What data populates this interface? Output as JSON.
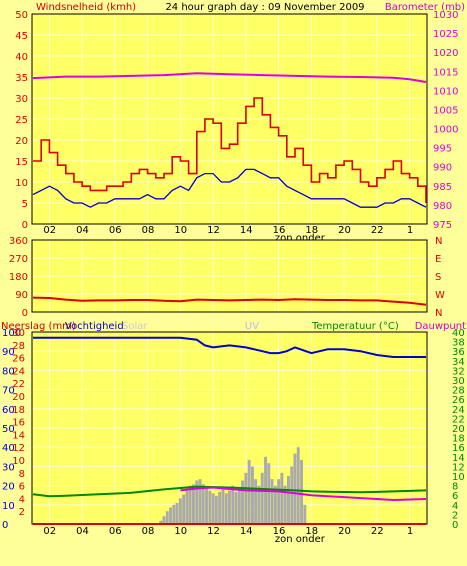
{
  "colors": {
    "background": "#ffff99",
    "plot_bg": "#ffff66",
    "grid": "#ffffcc",
    "frame": "#000000",
    "wind_gust": "#dd0000",
    "wind_avg": "#0000cc",
    "barometer": "#dd00dd",
    "direction": "#dd0000",
    "humidity": "#0000cc",
    "rain": "#dd0000",
    "solar": "#aaaaaa",
    "temperature": "#008800",
    "dewpoint": "#dd00dd",
    "uv": "#bbbbee"
  },
  "chart_data": [
    {
      "type": "line",
      "title": "24 hour graph day : 09 November 2009",
      "ylabel": "Windsnelheid (kmh)",
      "y2label": "Barometer (mb)",
      "x_ticks": [
        "02",
        "04",
        "06",
        "08",
        "10",
        "12",
        "14",
        "16",
        "18",
        "20",
        "22",
        "1"
      ],
      "x_note": "zon onder",
      "x_note_hour": 16.3,
      "ylim": [
        0,
        50
      ],
      "y_ticks": [
        0,
        5,
        10,
        15,
        20,
        25,
        30,
        35,
        40,
        45,
        50
      ],
      "y2lim": [
        975,
        1030
      ],
      "y2_ticks": [
        975,
        980,
        985,
        990,
        995,
        1000,
        1005,
        1010,
        1015,
        1020,
        1025,
        1030
      ],
      "series": [
        {
          "key": "gust",
          "axis": "left",
          "style": "step",
          "hours": [
            0,
            0.5,
            1,
            1.5,
            2,
            2.5,
            3,
            3.5,
            4,
            4.5,
            5,
            5.5,
            6,
            6.5,
            7,
            7.5,
            8,
            8.5,
            9,
            9.5,
            10,
            10.5,
            11,
            11.5,
            12,
            12.5,
            13,
            13.5,
            14,
            14.5,
            15,
            15.5,
            16,
            16.5,
            17,
            17.5,
            18,
            18.5,
            19,
            19.5,
            20,
            20.5,
            21,
            21.5,
            22,
            22.5,
            23,
            23.5,
            24
          ],
          "values": [
            15,
            20,
            17,
            14,
            12,
            10,
            9,
            8,
            8,
            9,
            9,
            10,
            12,
            13,
            12,
            11,
            12,
            16,
            15,
            12,
            22,
            25,
            24,
            18,
            19,
            24,
            28,
            30,
            26,
            23,
            21,
            16,
            18,
            14,
            10,
            12,
            11,
            14,
            15,
            13,
            10,
            9,
            11,
            13,
            15,
            12,
            11,
            9,
            5
          ]
        },
        {
          "key": "average",
          "axis": "left",
          "style": "line",
          "hours": [
            0,
            0.5,
            1,
            1.5,
            2,
            2.5,
            3,
            3.5,
            4,
            4.5,
            5,
            5.5,
            6,
            6.5,
            7,
            7.5,
            8,
            8.5,
            9,
            9.5,
            10,
            10.5,
            11,
            11.5,
            12,
            12.5,
            13,
            13.5,
            14,
            14.5,
            15,
            15.5,
            16,
            16.5,
            17,
            17.5,
            18,
            18.5,
            19,
            19.5,
            20,
            20.5,
            21,
            21.5,
            22,
            22.5,
            23,
            23.5,
            24
          ],
          "values": [
            7,
            8,
            9,
            8,
            6,
            5,
            5,
            4,
            5,
            5,
            6,
            6,
            6,
            6,
            7,
            6,
            6,
            8,
            9,
            8,
            11,
            12,
            12,
            10,
            10,
            11,
            13,
            13,
            12,
            11,
            11,
            9,
            8,
            7,
            6,
            6,
            6,
            6,
            6,
            5,
            4,
            4,
            4,
            5,
            5,
            6,
            6,
            5,
            4
          ]
        },
        {
          "key": "barometer",
          "axis": "right",
          "style": "line",
          "hours": [
            0,
            2,
            4,
            6,
            8,
            10,
            12,
            14,
            16,
            18,
            20,
            22,
            23,
            24
          ],
          "values": [
            1013.2,
            1013.6,
            1013.6,
            1013.8,
            1014.0,
            1014.5,
            1014.2,
            1014.0,
            1013.8,
            1013.6,
            1013.5,
            1013.3,
            1012.9,
            1012.2
          ]
        }
      ]
    },
    {
      "type": "line",
      "y_ticks_labels": [
        "0",
        "90",
        "180",
        "270",
        "360"
      ],
      "ylim": [
        0,
        360
      ],
      "compass": [
        "N",
        "W",
        "S",
        "E",
        "N"
      ],
      "series": [
        {
          "key": "direction",
          "hours": [
            0,
            1,
            2,
            3,
            4,
            5,
            6,
            7,
            8,
            9,
            10,
            11,
            12,
            13,
            14,
            15,
            16,
            17,
            18,
            19,
            20,
            21,
            22,
            23,
            24
          ],
          "values": [
            72,
            70,
            62,
            56,
            58,
            58,
            60,
            60,
            56,
            54,
            62,
            60,
            58,
            60,
            62,
            60,
            64,
            62,
            60,
            60,
            58,
            58,
            52,
            46,
            36
          ]
        }
      ]
    },
    {
      "type": "line",
      "headers": {
        "rain": "Neerslag (mm)",
        "humidity": "Vochtigheid",
        "solar": "Solar",
        "uv": "UV",
        "temperature": "Temperatuur (°C)",
        "dewpoint": "Dauwpunt"
      },
      "x_ticks": [
        "02",
        "04",
        "06",
        "08",
        "10",
        "12",
        "14",
        "16",
        "18",
        "20",
        "22",
        "1"
      ],
      "x_note": "zon onder",
      "x_note_hour": 16.3,
      "left_scale_1": {
        "ylim": [
          0,
          100
        ],
        "ticks": [
          0,
          10,
          20,
          30,
          40,
          50,
          60,
          70,
          80,
          90,
          100
        ]
      },
      "left_scale_2": {
        "ylim": [
          0,
          30
        ],
        "ticks": [
          0,
          2,
          4,
          6,
          8,
          10,
          12,
          14,
          16,
          18,
          20,
          22,
          24,
          26,
          28,
          30
        ]
      },
      "right_scale": {
        "ylim": [
          0,
          40
        ],
        "ticks": [
          0,
          2,
          4,
          6,
          8,
          10,
          12,
          14,
          16,
          18,
          20,
          22,
          24,
          26,
          28,
          30,
          32,
          34,
          36,
          38,
          40
        ]
      },
      "series": [
        {
          "key": "humidity",
          "axis": "left_1",
          "hours": [
            0,
            2,
            4,
            6,
            7,
            8,
            9,
            10,
            10.5,
            11,
            12,
            13,
            14,
            14.5,
            15,
            15.5,
            16,
            17,
            17.5,
            18,
            19,
            20,
            21,
            22,
            23,
            24
          ],
          "values": [
            97,
            97,
            97,
            97,
            97,
            97,
            97,
            96,
            93,
            92,
            93,
            92,
            90,
            89,
            89,
            90,
            92,
            89,
            90,
            91,
            91,
            90,
            88,
            87,
            87,
            87
          ]
        },
        {
          "key": "temperature",
          "axis": "right",
          "hours": [
            0,
            1,
            2,
            4,
            6,
            8,
            10,
            12,
            14,
            16,
            17,
            18,
            20,
            22,
            24
          ],
          "values": [
            6.2,
            5.8,
            5.9,
            6.2,
            6.5,
            7.2,
            7.8,
            7.6,
            7.3,
            7.0,
            6.8,
            6.7,
            6.6,
            6.8,
            7.0
          ]
        },
        {
          "key": "dewpoint",
          "axis": "right",
          "hours": [
            9,
            10,
            11,
            12,
            13,
            14,
            15,
            16,
            17,
            18,
            19,
            20,
            21,
            22,
            23,
            24
          ],
          "values": [
            7.0,
            7.4,
            7.6,
            7.3,
            7.0,
            6.9,
            6.8,
            6.4,
            6.0,
            5.8,
            5.6,
            5.4,
            5.2,
            5.0,
            5.1,
            5.2
          ]
        },
        {
          "key": "rain",
          "axis": "left_2",
          "hours": [
            0,
            24
          ],
          "values": [
            0,
            0
          ]
        },
        {
          "key": "solar",
          "axis": "left_2",
          "style": "bars",
          "hours": [
            7.8,
            8,
            8.2,
            8.4,
            8.6,
            8.8,
            9,
            9.2,
            9.4,
            9.6,
            9.8,
            10,
            10.2,
            10.4,
            10.6,
            10.8,
            11,
            11.2,
            11.4,
            11.6,
            11.8,
            12,
            12.2,
            12.4,
            12.6,
            12.8,
            13,
            13.2,
            13.4,
            13.6,
            13.8,
            14,
            14.2,
            14.4,
            14.6,
            14.8,
            15,
            15.2,
            15.4,
            15.6,
            15.8,
            16,
            16.2,
            16.4,
            16.6
          ],
          "values": [
            0.5,
            1.2,
            2,
            2.6,
            3,
            3.3,
            4,
            4.6,
            5.2,
            6,
            6.2,
            6.8,
            7,
            6.2,
            5.6,
            5.2,
            4.8,
            4.4,
            5,
            5.6,
            4.8,
            5.2,
            6,
            5,
            5.8,
            6.8,
            8,
            10,
            9,
            7,
            6,
            8,
            10.5,
            9.5,
            7,
            6,
            7,
            8,
            6,
            7.5,
            9,
            11,
            12,
            10,
            3
          ]
        }
      ]
    }
  ]
}
